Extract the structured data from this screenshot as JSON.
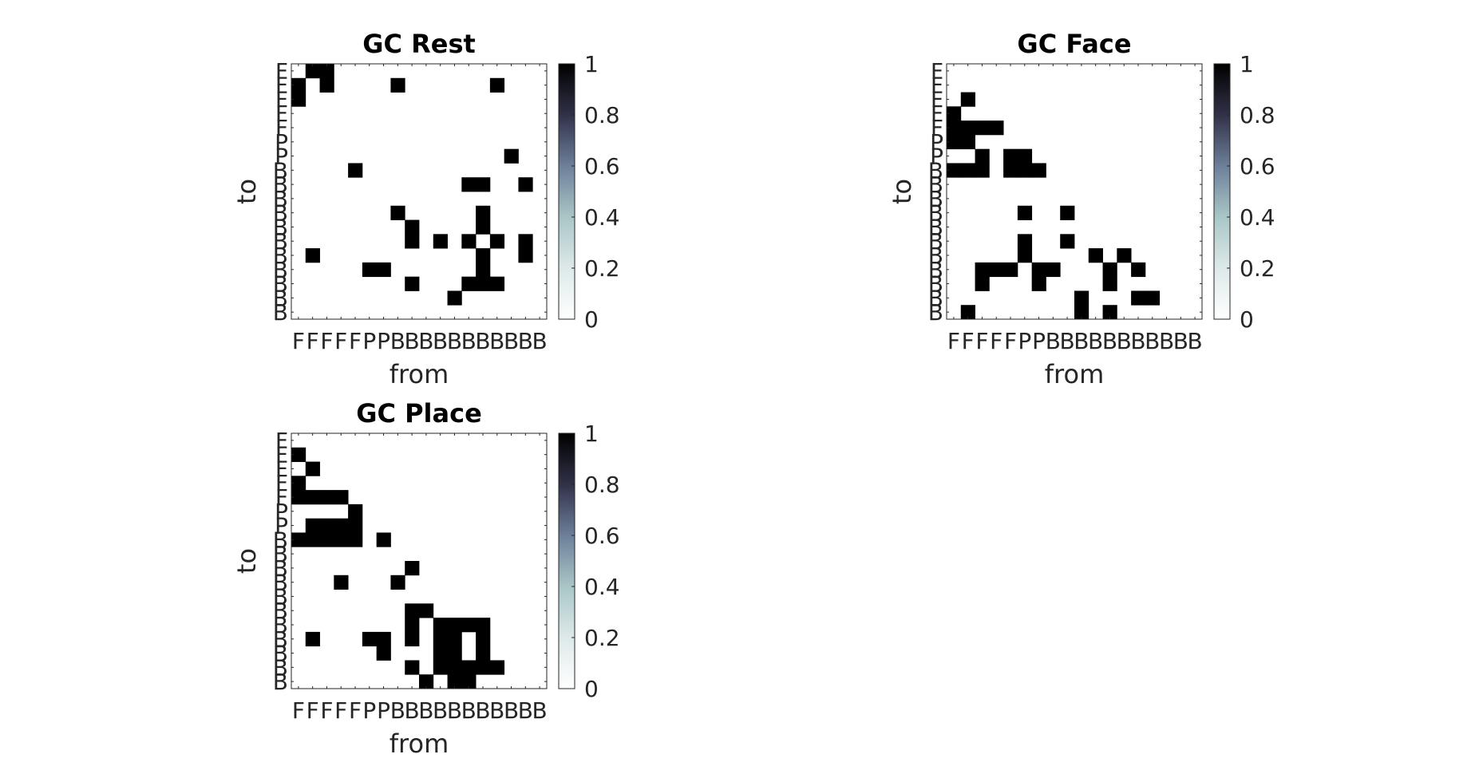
{
  "colorbar": {
    "ticks": [
      "0",
      "0.2",
      "0.4",
      "0.6",
      "0.8",
      "1"
    ],
    "colors": [
      "#ffffff",
      "#dde9e9",
      "#a9c6c6",
      "#6d7f9a",
      "#313148",
      "#000000"
    ]
  },
  "chart_data": [
    {
      "type": "heatmap",
      "title": "GC Rest",
      "xlabel": "from",
      "ylabel": "to",
      "x_tick_labels": [
        "F",
        "F",
        "F",
        "F",
        "F",
        "P",
        "P",
        "B",
        "B",
        "B",
        "B",
        "B",
        "B",
        "B",
        "B",
        "B",
        "B",
        "B"
      ],
      "y_tick_labels": [
        "F",
        "F",
        "F",
        "F",
        "F",
        "P",
        "P",
        "B",
        "B",
        "B",
        "B",
        "B",
        "B",
        "B",
        "B",
        "B",
        "B",
        "B"
      ],
      "clim": [
        0,
        1
      ],
      "cells": [
        [
          0,
          1
        ],
        [
          0,
          2
        ],
        [
          1,
          0
        ],
        [
          1,
          2
        ],
        [
          1,
          7
        ],
        [
          1,
          14
        ],
        [
          2,
          0
        ],
        [
          6,
          15
        ],
        [
          7,
          4
        ],
        [
          8,
          12
        ],
        [
          8,
          13
        ],
        [
          8,
          16
        ],
        [
          10,
          7
        ],
        [
          10,
          13
        ],
        [
          11,
          8
        ],
        [
          11,
          13
        ],
        [
          12,
          8
        ],
        [
          12,
          10
        ],
        [
          12,
          12
        ],
        [
          12,
          14
        ],
        [
          12,
          16
        ],
        [
          13,
          1
        ],
        [
          13,
          13
        ],
        [
          13,
          16
        ],
        [
          14,
          5
        ],
        [
          14,
          6
        ],
        [
          14,
          13
        ],
        [
          15,
          8
        ],
        [
          15,
          12
        ],
        [
          15,
          13
        ],
        [
          15,
          14
        ],
        [
          16,
          11
        ]
      ]
    },
    {
      "type": "heatmap",
      "title": "GC Face",
      "xlabel": "from",
      "ylabel": "to",
      "x_tick_labels": [
        "F",
        "F",
        "F",
        "F",
        "F",
        "P",
        "P",
        "B",
        "B",
        "B",
        "B",
        "B",
        "B",
        "B",
        "B",
        "B",
        "B",
        "B"
      ],
      "y_tick_labels": [
        "F",
        "F",
        "F",
        "F",
        "F",
        "P",
        "P",
        "B",
        "B",
        "B",
        "B",
        "B",
        "B",
        "B",
        "B",
        "B",
        "B",
        "B"
      ],
      "clim": [
        0,
        1
      ],
      "cells": [
        [
          2,
          1
        ],
        [
          3,
          0
        ],
        [
          4,
          0
        ],
        [
          4,
          1
        ],
        [
          4,
          2
        ],
        [
          4,
          3
        ],
        [
          5,
          0
        ],
        [
          5,
          1
        ],
        [
          6,
          2
        ],
        [
          6,
          4
        ],
        [
          6,
          5
        ],
        [
          7,
          0
        ],
        [
          7,
          1
        ],
        [
          7,
          2
        ],
        [
          7,
          4
        ],
        [
          7,
          5
        ],
        [
          7,
          6
        ],
        [
          10,
          5
        ],
        [
          10,
          8
        ],
        [
          12,
          5
        ],
        [
          12,
          8
        ],
        [
          13,
          5
        ],
        [
          13,
          10
        ],
        [
          13,
          12
        ],
        [
          14,
          2
        ],
        [
          14,
          3
        ],
        [
          14,
          4
        ],
        [
          14,
          6
        ],
        [
          14,
          7
        ],
        [
          14,
          11
        ],
        [
          14,
          13
        ],
        [
          15,
          2
        ],
        [
          15,
          6
        ],
        [
          15,
          11
        ],
        [
          16,
          9
        ],
        [
          16,
          13
        ],
        [
          16,
          14
        ],
        [
          17,
          1
        ],
        [
          17,
          9
        ],
        [
          17,
          11
        ]
      ]
    },
    {
      "type": "heatmap",
      "title": "GC Place",
      "xlabel": "from",
      "ylabel": "to",
      "x_tick_labels": [
        "F",
        "F",
        "F",
        "F",
        "F",
        "P",
        "P",
        "B",
        "B",
        "B",
        "B",
        "B",
        "B",
        "B",
        "B",
        "B",
        "B",
        "B"
      ],
      "y_tick_labels": [
        "F",
        "F",
        "F",
        "F",
        "F",
        "P",
        "P",
        "B",
        "B",
        "B",
        "B",
        "B",
        "B",
        "B",
        "B",
        "B",
        "B",
        "B"
      ],
      "clim": [
        0,
        1
      ],
      "cells": [
        [
          1,
          0
        ],
        [
          2,
          1
        ],
        [
          3,
          0
        ],
        [
          4,
          0
        ],
        [
          4,
          1
        ],
        [
          4,
          2
        ],
        [
          4,
          3
        ],
        [
          5,
          4
        ],
        [
          6,
          1
        ],
        [
          6,
          2
        ],
        [
          6,
          3
        ],
        [
          6,
          4
        ],
        [
          7,
          0
        ],
        [
          7,
          1
        ],
        [
          7,
          2
        ],
        [
          7,
          3
        ],
        [
          7,
          4
        ],
        [
          7,
          6
        ],
        [
          9,
          8
        ],
        [
          10,
          3
        ],
        [
          10,
          7
        ],
        [
          12,
          8
        ],
        [
          12,
          9
        ],
        [
          13,
          8
        ],
        [
          13,
          10
        ],
        [
          13,
          11
        ],
        [
          13,
          12
        ],
        [
          13,
          13
        ],
        [
          14,
          1
        ],
        [
          14,
          5
        ],
        [
          14,
          6
        ],
        [
          14,
          8
        ],
        [
          14,
          10
        ],
        [
          14,
          11
        ],
        [
          14,
          13
        ],
        [
          15,
          6
        ],
        [
          15,
          10
        ],
        [
          15,
          11
        ],
        [
          15,
          13
        ],
        [
          16,
          8
        ],
        [
          16,
          10
        ],
        [
          16,
          11
        ],
        [
          16,
          12
        ],
        [
          16,
          13
        ],
        [
          16,
          14
        ],
        [
          17,
          9
        ],
        [
          17,
          11
        ],
        [
          17,
          12
        ]
      ]
    }
  ]
}
